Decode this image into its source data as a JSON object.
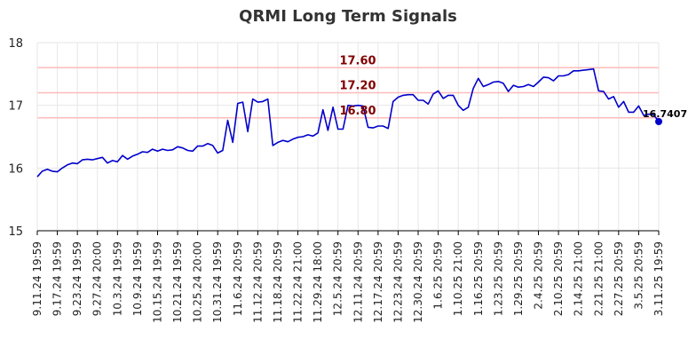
{
  "chart_data": {
    "type": "line",
    "title": "QRMI Long Term Signals",
    "xlabel": "",
    "ylabel": "",
    "ylim": [
      15,
      18
    ],
    "yticks": [
      "15",
      "16",
      "17",
      "18"
    ],
    "grid": true,
    "colors": {
      "line": "#0000cc",
      "level": "#ffbbbb",
      "level_text": "#800000",
      "last_point": "#0000cc",
      "grid": "#e6e6e6",
      "axis": "#000000"
    },
    "x_tick_labels": [
      "9.11.24 19:59",
      "9.17.24 19:59",
      "9.23.24 19:59",
      "9.27.24 20:00",
      "10.3.24 19:59",
      "10.9.24 19:59",
      "10.15.24 19:59",
      "10.21.24 19:59",
      "10.25.24 20:00",
      "10.31.24 19:59",
      "11.6.24 20:59",
      "11.12.24 20:59",
      "11.18.24 20:59",
      "11.22.24 21:00",
      "11.29.24 18:00",
      "12.5.24 20:59",
      "12.11.24 20:59",
      "12.17.24 20:59",
      "12.23.24 20:59",
      "12.30.24 20:59",
      "1.6.25 20:59",
      "1.10.25 21:00",
      "1.16.25 20:59",
      "1.23.25 20:59",
      "1.29.25 20:59",
      "2.4.25 20:59",
      "2.10.25 20:59",
      "2.14.25 21:00",
      "2.21.25 21:00",
      "2.27.25 20:59",
      "3.5.25 20:59",
      "3.11.25 19:59"
    ],
    "levels": [
      {
        "value": 17.6,
        "label": "17.60"
      },
      {
        "value": 17.2,
        "label": "17.20"
      },
      {
        "value": 16.8,
        "label": "16.80"
      }
    ],
    "last_value_label": "16.7407",
    "values": [
      15.86,
      15.95,
      15.98,
      15.95,
      15.94,
      16.0,
      16.05,
      16.08,
      16.07,
      16.13,
      16.14,
      16.13,
      16.15,
      16.17,
      16.08,
      16.12,
      16.1,
      16.2,
      16.14,
      16.19,
      16.22,
      16.26,
      16.25,
      16.3,
      16.27,
      16.3,
      16.28,
      16.29,
      16.34,
      16.32,
      16.28,
      16.27,
      16.35,
      16.35,
      16.39,
      16.36,
      16.24,
      16.28,
      16.76,
      16.41,
      17.03,
      17.05,
      16.58,
      17.1,
      17.05,
      17.06,
      17.1,
      16.36,
      16.41,
      16.44,
      16.42,
      16.46,
      16.49,
      16.5,
      16.53,
      16.51,
      16.56,
      16.93,
      16.6,
      16.97,
      16.62,
      16.62,
      17.0,
      16.99,
      17.0,
      16.99,
      16.65,
      16.64,
      16.67,
      16.67,
      16.63,
      17.06,
      17.13,
      17.16,
      17.17,
      17.17,
      17.08,
      17.08,
      17.02,
      17.18,
      17.23,
      17.11,
      17.16,
      17.16,
      17.0,
      16.92,
      16.97,
      17.27,
      17.43,
      17.3,
      17.33,
      17.37,
      17.38,
      17.35,
      17.22,
      17.32,
      17.29,
      17.3,
      17.33,
      17.3,
      17.37,
      17.45,
      17.44,
      17.39,
      17.47,
      17.47,
      17.49,
      17.55,
      17.55,
      17.56,
      17.57,
      17.58,
      17.23,
      17.22,
      17.1,
      17.14,
      16.97,
      17.06,
      16.89,
      16.89,
      16.99,
      16.84,
      16.86,
      16.85,
      16.7407
    ]
  }
}
